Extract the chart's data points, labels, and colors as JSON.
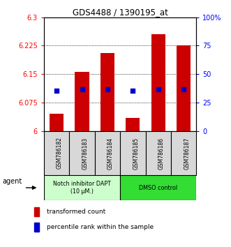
{
  "title": "GDS4488 / 1390195_at",
  "samples": [
    "GSM786182",
    "GSM786183",
    "GSM786184",
    "GSM786185",
    "GSM786186",
    "GSM786187"
  ],
  "bar_values": [
    6.045,
    6.155,
    6.205,
    6.035,
    6.255,
    6.225
  ],
  "percentile_y": [
    6.107,
    6.11,
    6.11,
    6.107,
    6.11,
    6.11
  ],
  "y_min": 6.0,
  "y_max": 6.3,
  "y_ticks": [
    6.0,
    6.075,
    6.15,
    6.225,
    6.3
  ],
  "y_tick_labels": [
    "6",
    "6.075",
    "6.15",
    "6.225",
    "6.3"
  ],
  "y2_ticks": [
    0,
    25,
    50,
    75,
    100
  ],
  "y2_tick_labels": [
    "0",
    "25",
    "50",
    "75",
    "100%"
  ],
  "bar_color": "#cc0000",
  "dot_color": "#0000cc",
  "group1_label": "Notch inhibitor DAPT\n(10 μM.)",
  "group2_label": "DMSO control",
  "group1_bg": "#ccffcc",
  "group2_bg": "#33dd33",
  "sample_box_bg": "#d8d8d8",
  "legend_bar_label": "transformed count",
  "legend_dot_label": "percentile rank within the sample",
  "agent_label": "agent"
}
